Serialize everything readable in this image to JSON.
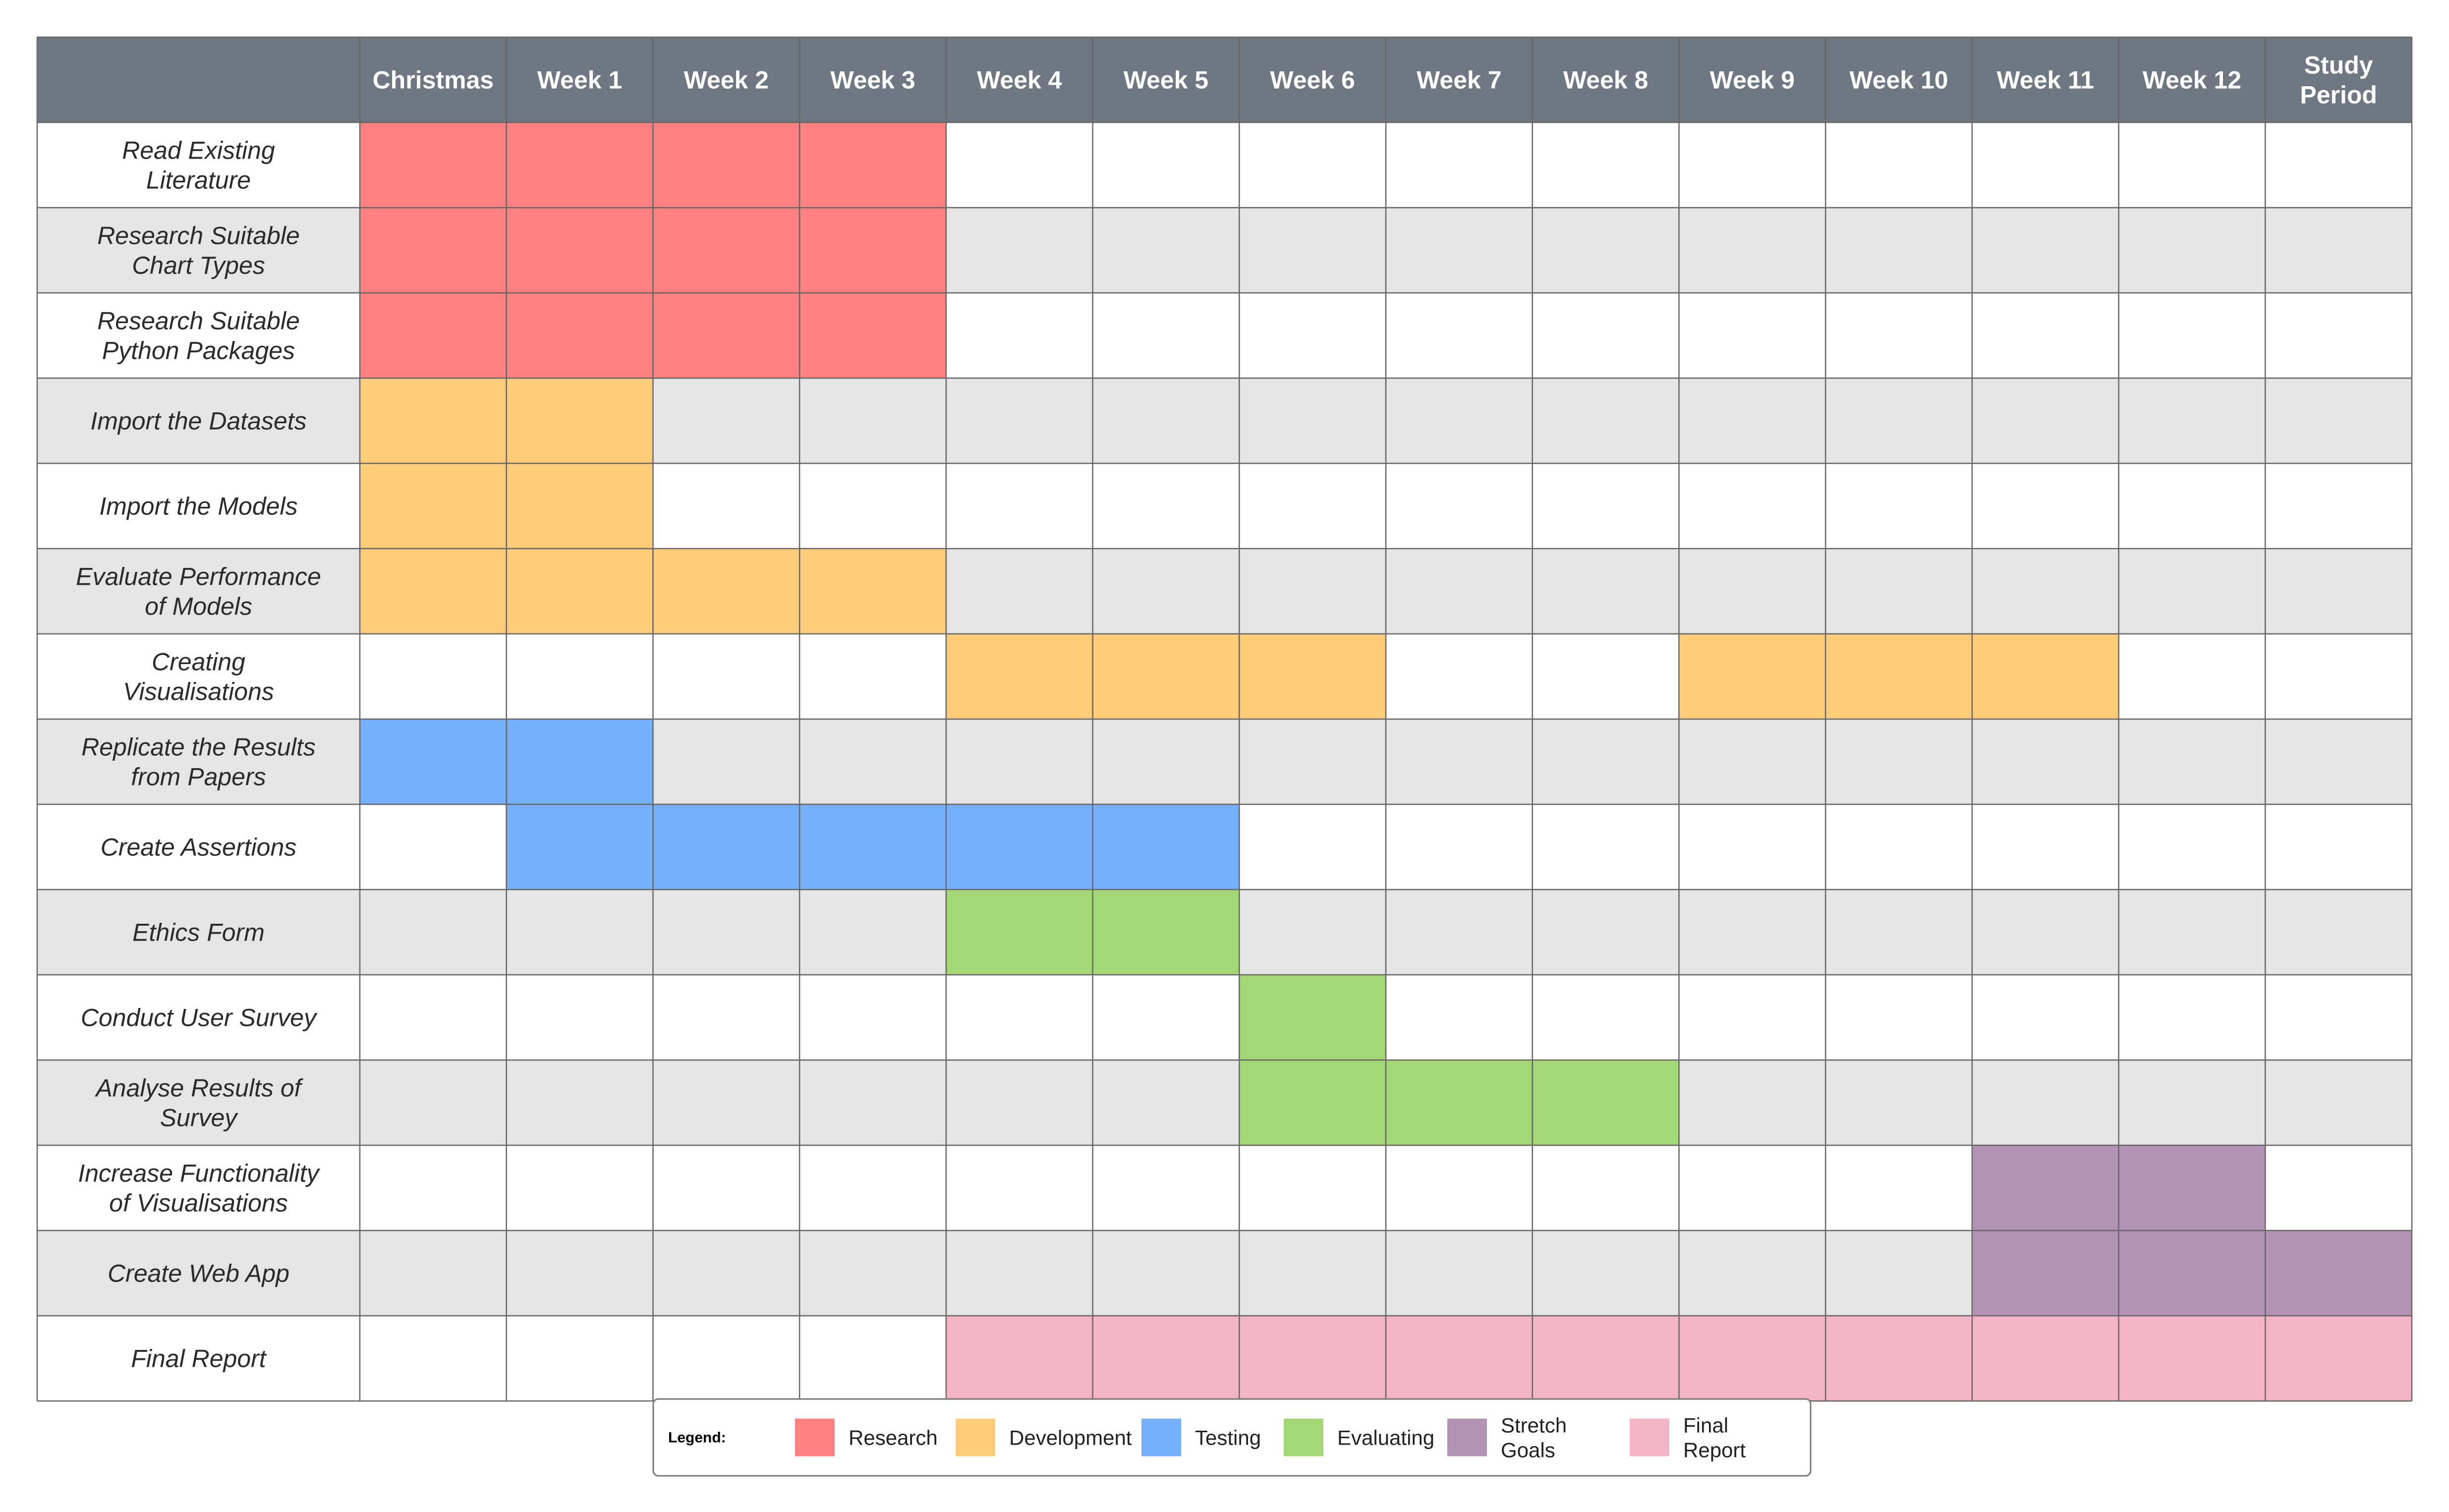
{
  "chart_data": {
    "type": "gantt",
    "columns": [
      "Christmas",
      "Week 1",
      "Week 2",
      "Week 3",
      "Week 4",
      "Week 5",
      "Week 6",
      "Week 7",
      "Week 8",
      "Week 9",
      "Week 10",
      "Week 11",
      "Week 12",
      "Study Period"
    ],
    "tasks": [
      {
        "name": "Read Existing Literature",
        "category": "Research",
        "spans": [
          [
            0,
            3
          ]
        ]
      },
      {
        "name": "Research Suitable Chart Types",
        "category": "Research",
        "spans": [
          [
            0,
            3
          ]
        ]
      },
      {
        "name": "Research Suitable Python Packages",
        "category": "Research",
        "spans": [
          [
            0,
            3
          ]
        ]
      },
      {
        "name": "Import the Datasets",
        "category": "Development",
        "spans": [
          [
            0,
            1
          ]
        ]
      },
      {
        "name": "Import the Models",
        "category": "Development",
        "spans": [
          [
            0,
            1
          ]
        ]
      },
      {
        "name": "Evaluate Performance of Models",
        "category": "Development",
        "spans": [
          [
            0,
            3
          ]
        ]
      },
      {
        "name": "Creating Visualisations",
        "category": "Development",
        "spans": [
          [
            4,
            6
          ],
          [
            9,
            11
          ]
        ]
      },
      {
        "name": "Replicate the Results from Papers",
        "category": "Testing",
        "spans": [
          [
            0,
            1
          ]
        ]
      },
      {
        "name": "Create Assertions",
        "category": "Testing",
        "spans": [
          [
            1,
            5
          ]
        ]
      },
      {
        "name": "Ethics Form",
        "category": "Evaluating",
        "spans": [
          [
            4,
            5
          ]
        ]
      },
      {
        "name": "Conduct User Survey",
        "category": "Evaluating",
        "spans": [
          [
            6,
            6
          ]
        ]
      },
      {
        "name": "Analyse Results of Survey",
        "category": "Evaluating",
        "spans": [
          [
            6,
            8
          ]
        ]
      },
      {
        "name": "Increase Functionality of Visualisations",
        "category": "Stretch Goals",
        "spans": [
          [
            11,
            12
          ]
        ]
      },
      {
        "name": "Create Web App",
        "category": "Stretch Goals",
        "spans": [
          [
            11,
            13
          ]
        ]
      },
      {
        "name": "Final Report",
        "category": "Final Report",
        "spans": [
          [
            4,
            13
          ]
        ]
      }
    ],
    "legend": {
      "title": "Legend:",
      "items": [
        {
          "name": "Research",
          "color": "#ff8080"
        },
        {
          "name": "Development",
          "color": "#ffcc7a"
        },
        {
          "name": "Testing",
          "color": "#76b0fb"
        },
        {
          "name": "Evaluating",
          "color": "#a4d876"
        },
        {
          "name": "Stretch Goals",
          "color": "#b393b5"
        },
        {
          "name": "Final Report",
          "color": "#f4b4c7"
        }
      ]
    },
    "colors": {
      "header_bg": "#6e7782",
      "row_alt": "#e5e5e5",
      "row_base": "#ffffff",
      "grid": "#666666"
    }
  }
}
